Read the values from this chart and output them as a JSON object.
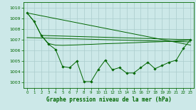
{
  "title": "Graphe pression niveau de la mer (hPa)",
  "background_color": "#cce8e8",
  "grid_color": "#aacccc",
  "line_color": "#006600",
  "xlim": [
    -0.5,
    23.5
  ],
  "ylim": [
    1002.5,
    1010.5
  ],
  "yticks": [
    1003,
    1004,
    1005,
    1006,
    1007,
    1008,
    1009,
    1010
  ],
  "xticks": [
    0,
    1,
    2,
    3,
    4,
    5,
    6,
    7,
    8,
    9,
    10,
    11,
    12,
    13,
    14,
    15,
    16,
    17,
    18,
    19,
    20,
    21,
    22,
    23
  ],
  "series_main": {
    "x": [
      0,
      1,
      2,
      3,
      4,
      5,
      6,
      7,
      8,
      9,
      10,
      11,
      12,
      13,
      14,
      15,
      16,
      17,
      18,
      19,
      20,
      21,
      22,
      23
    ],
    "y": [
      1009.5,
      1008.7,
      1007.4,
      1006.6,
      1006.1,
      1004.5,
      1004.4,
      1005.0,
      1003.1,
      1003.1,
      1004.2,
      1005.1,
      1004.2,
      1004.4,
      1003.9,
      1003.9,
      1004.4,
      1004.9,
      1004.3,
      1004.6,
      1004.9,
      1005.1,
      1006.2,
      1007.0
    ]
  },
  "series_smooth": {
    "x": [
      0,
      1,
      2,
      3,
      4,
      5,
      6,
      7,
      8,
      9,
      10,
      11,
      12,
      13,
      14,
      15,
      16,
      17,
      18,
      19,
      20,
      21,
      22,
      23
    ],
    "y": [
      1009.5,
      1008.7,
      1007.4,
      1006.65,
      1006.5,
      1006.48,
      1006.5,
      1006.52,
      1006.55,
      1006.57,
      1006.6,
      1006.63,
      1006.65,
      1006.67,
      1006.7,
      1006.72,
      1006.75,
      1006.78,
      1006.8,
      1006.82,
      1006.85,
      1006.88,
      1006.93,
      1007.0
    ]
  },
  "trend1": {
    "x": [
      0,
      23
    ],
    "y": [
      1009.5,
      1006.5
    ]
  },
  "trend2": {
    "x": [
      0,
      23
    ],
    "y": [
      1007.2,
      1006.8
    ]
  },
  "trend3": {
    "x": [
      2,
      23
    ],
    "y": [
      1007.4,
      1007.0
    ]
  }
}
